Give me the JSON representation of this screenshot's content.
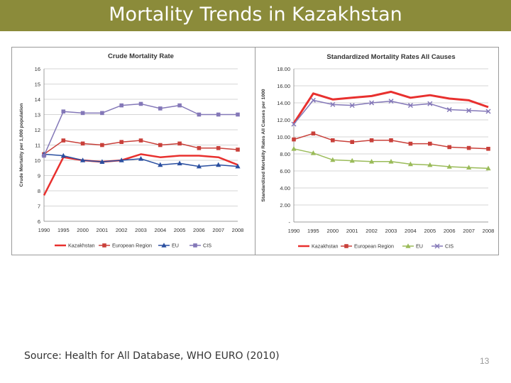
{
  "slide": {
    "title": "Mortality Trends in Kazakhstan",
    "source": "Source: Health for All Database, WHO EURO (2010)",
    "page_number": "13"
  },
  "chart_data": [
    {
      "type": "line",
      "title": "Crude Mortality Rate",
      "ylabel": "Crude Mortality per 1,000 population",
      "xlabel": "",
      "categories": [
        "1990",
        "1995",
        "2000",
        "2001",
        "2002",
        "2003",
        "2004",
        "2005",
        "2006",
        "2007",
        "2008"
      ],
      "ylim": [
        6,
        16
      ],
      "yticks": [
        6,
        7,
        8,
        9,
        10,
        11,
        12,
        13,
        14,
        15,
        16
      ],
      "ytick_labels": [
        "6",
        "7",
        "8",
        "9",
        "10",
        "11",
        "12",
        "13",
        "14",
        "15",
        "16"
      ],
      "grid": true,
      "legend_position": "bottom",
      "series": [
        {
          "name": "Kazakhstan",
          "color": "#e8302e",
          "marker": "none",
          "width": 2.5,
          "values": [
            7.7,
            10.2,
            10.0,
            9.9,
            10.0,
            10.4,
            10.2,
            10.3,
            10.3,
            10.2,
            9.7
          ]
        },
        {
          "name": "European Region",
          "color": "#c9403a",
          "marker": "square",
          "width": 1.5,
          "values": [
            10.4,
            11.3,
            11.1,
            11.0,
            11.2,
            11.3,
            11.0,
            11.1,
            10.8,
            10.8,
            10.7
          ]
        },
        {
          "name": "EU",
          "color": "#2a4fa0",
          "marker": "triangle",
          "width": 1.5,
          "values": [
            10.4,
            10.3,
            10.0,
            9.9,
            10.0,
            10.1,
            9.7,
            9.8,
            9.6,
            9.7,
            9.6
          ]
        },
        {
          "name": "CIS",
          "color": "#8478b8",
          "marker": "square",
          "width": 1.5,
          "values": [
            10.3,
            13.2,
            13.1,
            13.1,
            13.6,
            13.7,
            13.4,
            13.6,
            13.0,
            13.0,
            13.0
          ]
        }
      ]
    },
    {
      "type": "line",
      "title": "Standardized Mortality Rates All Causes",
      "ylabel": "Standardized Mortality Rates All Causes per 1000",
      "xlabel": "",
      "categories": [
        "1990",
        "1995",
        "2000",
        "2001",
        "2002",
        "2003",
        "2004",
        "2005",
        "2006",
        "2007",
        "2008"
      ],
      "ylim": [
        0,
        18
      ],
      "yticks": [
        0,
        2,
        4,
        6,
        8,
        10,
        12,
        14,
        16,
        18
      ],
      "ytick_labels": [
        "-",
        "2.00",
        "4.00",
        "6.00",
        "8.00",
        "10.00",
        "12.00",
        "14.00",
        "16.00",
        "18.00"
      ],
      "grid": true,
      "legend_position": "bottom",
      "series": [
        {
          "name": "Kazakhstan",
          "color": "#e8302e",
          "marker": "none",
          "width": 3,
          "values": [
            11.6,
            15.1,
            14.4,
            14.6,
            14.8,
            15.3,
            14.6,
            14.9,
            14.5,
            14.3,
            13.5
          ]
        },
        {
          "name": "European Region",
          "color": "#c9403a",
          "marker": "square",
          "width": 1.5,
          "values": [
            9.7,
            10.4,
            9.6,
            9.4,
            9.6,
            9.6,
            9.2,
            9.2,
            8.8,
            8.7,
            8.6
          ]
        },
        {
          "name": "EU",
          "color": "#9abb59",
          "marker": "triangle",
          "width": 1.5,
          "values": [
            8.6,
            8.1,
            7.3,
            7.2,
            7.1,
            7.1,
            6.8,
            6.7,
            6.5,
            6.4,
            6.3
          ]
        },
        {
          "name": "CIS",
          "color": "#8478b8",
          "marker": "x",
          "width": 1.5,
          "values": [
            11.5,
            14.3,
            13.8,
            13.7,
            14.0,
            14.2,
            13.7,
            13.9,
            13.2,
            13.1,
            13.0
          ]
        }
      ]
    }
  ]
}
